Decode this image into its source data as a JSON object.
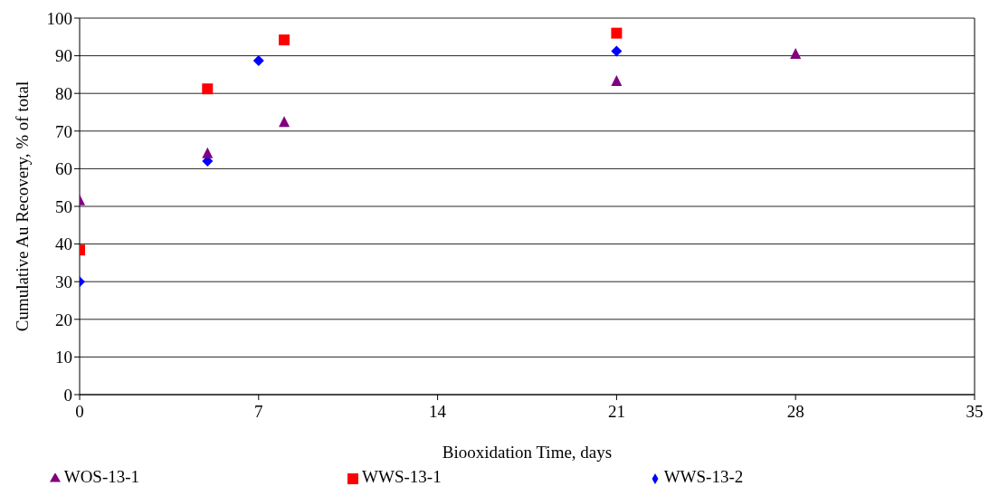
{
  "chart_data": {
    "type": "scatter",
    "xlabel": "Biooxidation Time, days",
    "ylabel": "Cumulative Au Recovery, % of total",
    "xlim": [
      0,
      35
    ],
    "xticks": [
      0,
      7,
      14,
      21,
      28,
      35
    ],
    "ylim": [
      0,
      100
    ],
    "yticks": [
      0,
      10,
      20,
      30,
      40,
      50,
      60,
      70,
      80,
      90,
      100
    ],
    "grid": "y",
    "legend": "bottom",
    "series": [
      {
        "name": "WWS-13-1",
        "color": "#ff0000",
        "marker": "square",
        "x": [
          0,
          5,
          8,
          21
        ],
        "values": [
          38.4,
          81.2,
          94.2,
          96
        ]
      },
      {
        "name": "WWS-13-2",
        "color": "#0000ff",
        "marker": "diamond",
        "x": [
          0,
          5,
          7,
          21
        ],
        "values": [
          30,
          62,
          88.7,
          91.2
        ]
      },
      {
        "name": "WOS-13-1",
        "color": "#800080",
        "marker": "triangle",
        "x": [
          0,
          5,
          8,
          21,
          28
        ],
        "values": [
          51.5,
          64,
          72.3,
          83.2,
          90.4
        ]
      }
    ]
  }
}
